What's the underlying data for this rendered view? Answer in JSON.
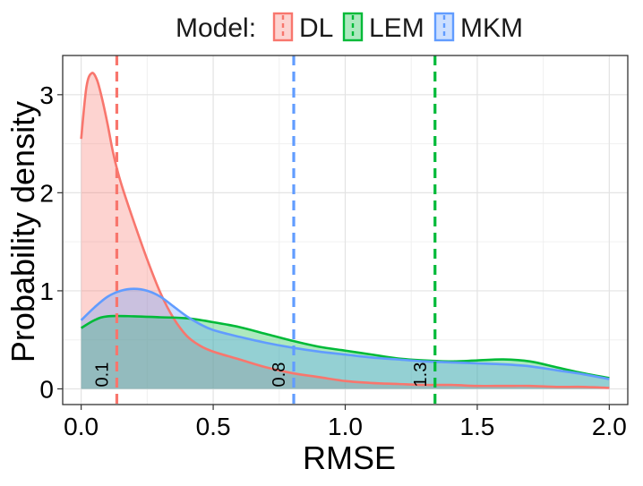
{
  "chart_data": {
    "type": "area",
    "subtype": "density",
    "title": "",
    "xlabel": "RMSE",
    "ylabel": "Probability density",
    "xlim": [
      -0.07,
      2.07
    ],
    "ylim": [
      -0.16,
      3.4
    ],
    "x_ticks": [
      0.0,
      0.5,
      1.0,
      1.5,
      2.0
    ],
    "x_tick_labels": [
      "0.0",
      "0.5",
      "1.0",
      "1.5",
      "2.0"
    ],
    "y_ticks": [
      0,
      1,
      2,
      3
    ],
    "y_tick_labels": [
      "0",
      "1",
      "2",
      "3"
    ],
    "grid": true,
    "legend": {
      "title": "Model:",
      "position": "top",
      "entries": [
        "DL",
        "LEM",
        "MKM"
      ]
    },
    "series": [
      {
        "name": "DL",
        "color": "#F8766D",
        "fill": "#F8766D",
        "x": [
          0.0,
          0.02,
          0.04,
          0.06,
          0.08,
          0.1,
          0.12,
          0.14,
          0.16,
          0.2,
          0.25,
          0.3,
          0.35,
          0.4,
          0.45,
          0.5,
          0.6,
          0.7,
          0.8,
          0.9,
          1.0,
          1.1,
          1.2,
          1.3,
          1.4,
          1.5,
          1.6,
          1.7,
          1.8,
          1.9,
          2.0
        ],
        "y": [
          2.55,
          3.08,
          3.22,
          3.15,
          2.95,
          2.7,
          2.42,
          2.2,
          2.02,
          1.7,
          1.32,
          0.98,
          0.72,
          0.54,
          0.44,
          0.38,
          0.3,
          0.22,
          0.16,
          0.12,
          0.08,
          0.06,
          0.05,
          0.04,
          0.04,
          0.03,
          0.03,
          0.03,
          0.02,
          0.02,
          0.01
        ]
      },
      {
        "name": "LEM",
        "color": "#00BA38",
        "fill": "#00BA38",
        "x": [
          0.0,
          0.05,
          0.1,
          0.2,
          0.3,
          0.4,
          0.5,
          0.6,
          0.7,
          0.8,
          0.9,
          1.0,
          1.1,
          1.2,
          1.3,
          1.4,
          1.5,
          1.6,
          1.7,
          1.8,
          1.9,
          2.0
        ],
        "y": [
          0.62,
          0.7,
          0.74,
          0.74,
          0.73,
          0.72,
          0.68,
          0.63,
          0.56,
          0.49,
          0.43,
          0.39,
          0.35,
          0.31,
          0.29,
          0.28,
          0.29,
          0.3,
          0.28,
          0.22,
          0.16,
          0.11
        ]
      },
      {
        "name": "MKM",
        "color": "#619CFF",
        "fill": "#619CFF",
        "x": [
          0.0,
          0.05,
          0.1,
          0.15,
          0.2,
          0.25,
          0.3,
          0.35,
          0.4,
          0.45,
          0.5,
          0.6,
          0.7,
          0.8,
          0.9,
          1.0,
          1.1,
          1.2,
          1.3,
          1.4,
          1.5,
          1.6,
          1.7,
          1.8,
          1.9,
          2.0
        ],
        "y": [
          0.7,
          0.83,
          0.94,
          1.0,
          1.02,
          1.0,
          0.94,
          0.84,
          0.74,
          0.66,
          0.6,
          0.53,
          0.47,
          0.42,
          0.38,
          0.35,
          0.32,
          0.3,
          0.28,
          0.27,
          0.26,
          0.25,
          0.23,
          0.19,
          0.15,
          0.1
        ]
      }
    ],
    "annotations": [
      {
        "series": "DL",
        "x": 0.135,
        "label": "0.1",
        "line": "dashed"
      },
      {
        "series": "MKM",
        "x": 0.805,
        "label": "0.8",
        "line": "dashed"
      },
      {
        "series": "LEM",
        "x": 1.34,
        "label": "1.3",
        "line": "dashed"
      }
    ]
  }
}
